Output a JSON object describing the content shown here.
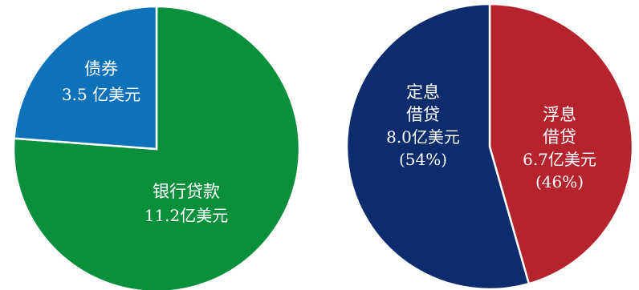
{
  "chart_data": [
    {
      "type": "pie",
      "slices": [
        {
          "name": "银行贷款",
          "value": 11.2,
          "label_lines": [
            "银行贷款",
            "11.2亿美元"
          ],
          "color": "#0a8f3c"
        },
        {
          "name": "债券",
          "value": 3.5,
          "label_lines": [
            "债券",
            "3.5 亿美元"
          ],
          "color": "#0d72b9"
        }
      ],
      "unit": "亿美元"
    },
    {
      "type": "pie",
      "slices": [
        {
          "name": "浮息借贷",
          "value": 6.7,
          "percent": 46,
          "label_lines": [
            "浮息",
            "借贷",
            "6.7亿美元",
            "(46%)"
          ],
          "color": "#b5232f"
        },
        {
          "name": "定息借贷",
          "value": 8.0,
          "percent": 54,
          "label_lines": [
            "定息",
            "借贷",
            "8.0亿美元",
            "(54%)"
          ],
          "color": "#0d2c6e"
        }
      ],
      "unit": "亿美元"
    }
  ]
}
